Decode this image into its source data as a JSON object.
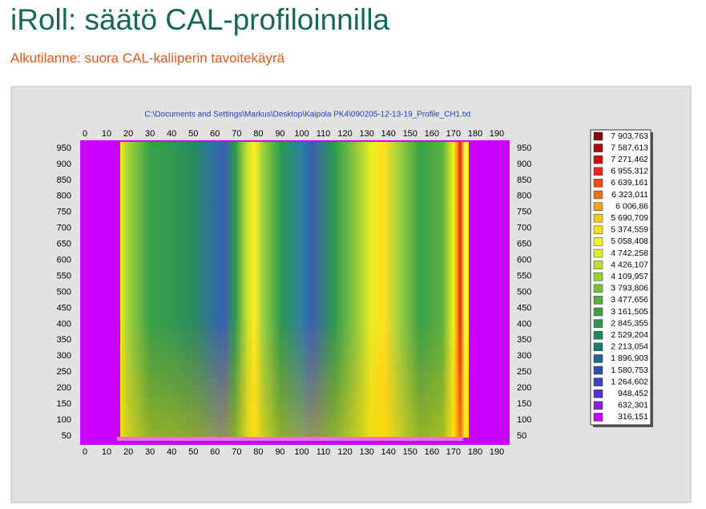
{
  "slide": {
    "title": "iRoll: säätö CAL-profiloinnilla",
    "subtitle": "Alkutilanne: suora CAL-kaliiperin tavoitekäyrä"
  },
  "figure": {
    "file": "C:\\Documents and Settings\\Markus\\Desktop\\Kaipola PK4\\090205-12-13-19_Profile_CH1.txt",
    "xticks": [
      0,
      10,
      20,
      30,
      40,
      50,
      60,
      70,
      80,
      90,
      100,
      110,
      120,
      130,
      140,
      150,
      160,
      170,
      180,
      190
    ],
    "yticks": [
      950,
      900,
      850,
      800,
      750,
      700,
      650,
      600,
      550,
      500,
      450,
      400,
      350,
      300,
      250,
      200,
      150,
      100,
      50
    ],
    "legend": [
      {
        "label": "7 903,763",
        "color": "#8b0000"
      },
      {
        "label": "7 587,613",
        "color": "#b00808"
      },
      {
        "label": "7 271,462",
        "color": "#d01010"
      },
      {
        "label": "6 955,312",
        "color": "#f02020"
      },
      {
        "label": "6 639,161",
        "color": "#f04818"
      },
      {
        "label": "6 323,011",
        "color": "#f07018"
      },
      {
        "label": "6 006,86",
        "color": "#f8a018"
      },
      {
        "label": "5 690,709",
        "color": "#f8c820"
      },
      {
        "label": "5 374,559",
        "color": "#f0e020"
      },
      {
        "label": "5 058,408",
        "color": "#f0f428"
      },
      {
        "label": "4 742,258",
        "color": "#d8f030"
      },
      {
        "label": "4 426,107",
        "color": "#b8e030"
      },
      {
        "label": "4 109,957",
        "color": "#98d030"
      },
      {
        "label": "3 793,806",
        "color": "#78c038"
      },
      {
        "label": "3 477,656",
        "color": "#58b040"
      },
      {
        "label": "3 161,505",
        "color": "#40a048"
      },
      {
        "label": "2 845,355",
        "color": "#30984c"
      },
      {
        "label": "2 529,204",
        "color": "#208c58"
      },
      {
        "label": "2 213,054",
        "color": "#1c7c70"
      },
      {
        "label": "1 896,903",
        "color": "#1f6a90"
      },
      {
        "label": "1 580,753",
        "color": "#2850b0"
      },
      {
        "label": "1 264,602",
        "color": "#3a40c8"
      },
      {
        "label": "948,452",
        "color": "#5a30d8"
      },
      {
        "label": "632,301",
        "color": "#8a20e0"
      },
      {
        "label": "316,151",
        "color": "#cc00ff"
      }
    ]
  }
}
